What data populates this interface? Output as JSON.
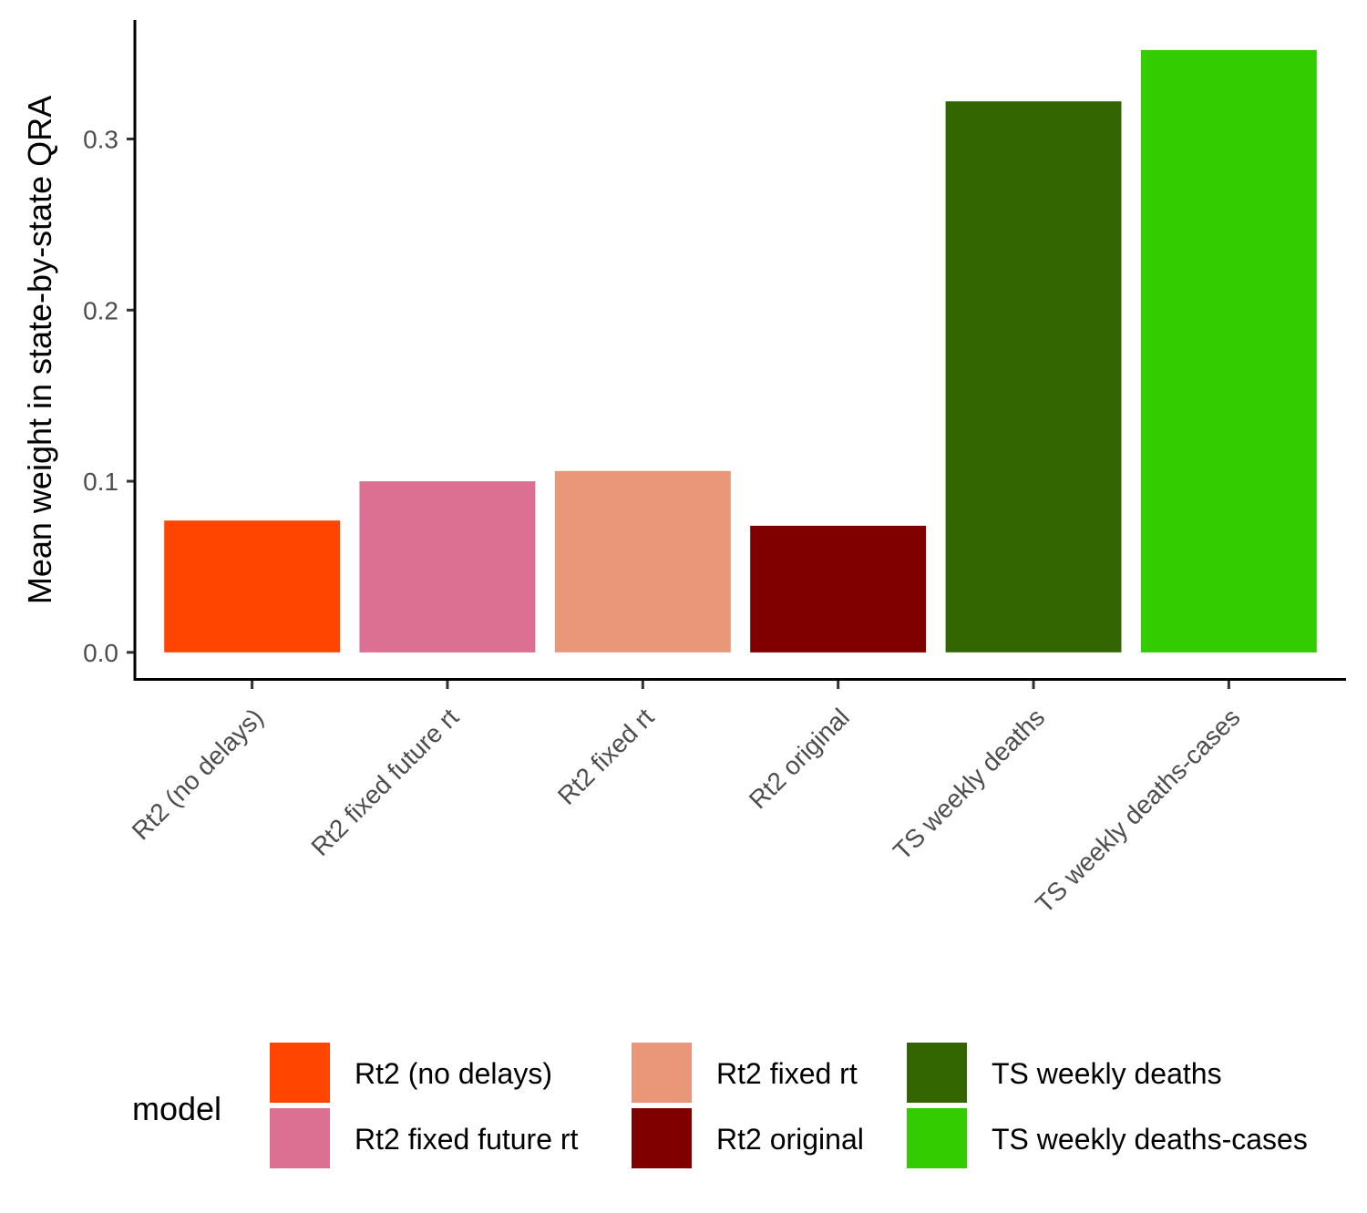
{
  "chart_data": {
    "type": "bar",
    "categories": [
      "Rt2 (no delays)",
      "Rt2 fixed future rt",
      "Rt2 fixed rt",
      "Rt2 original",
      "TS weekly deaths",
      "TS weekly deaths-cases"
    ],
    "values": [
      0.077,
      0.1,
      0.106,
      0.074,
      0.322,
      0.352
    ],
    "colors": [
      "#ff4500",
      "#dc7092",
      "#ea9679",
      "#800000",
      "#336600",
      "#33cc00"
    ],
    "ylabel": "Mean weight in state-by-state QRA",
    "xlabel": "",
    "ylim": [
      -0.0166,
      0.3695
    ],
    "yticks": [
      0.0,
      0.1,
      0.2,
      0.3
    ],
    "ytick_labels": [
      "0.0",
      "0.1",
      "0.2",
      "0.3"
    ],
    "grid": false,
    "legend": {
      "title": "model",
      "placement": "bottom",
      "entries": [
        "Rt2 (no delays)",
        "Rt2 fixed future rt",
        "Rt2 fixed rt",
        "Rt2 original",
        "TS weekly deaths",
        "TS weekly deaths-cases"
      ]
    }
  }
}
